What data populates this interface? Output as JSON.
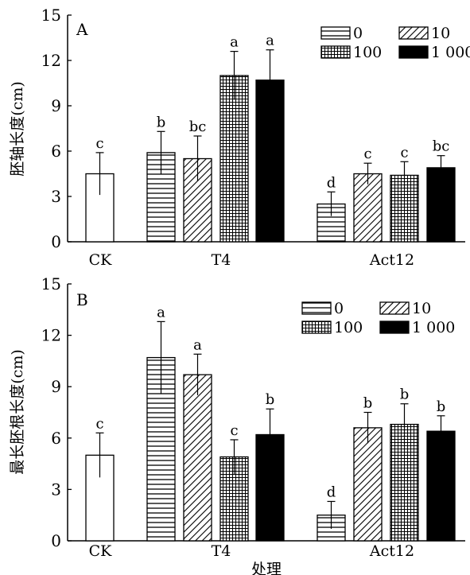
{
  "legend_entries": [
    {
      "label": "0",
      "pattern": "hlines"
    },
    {
      "label": "10",
      "pattern": "diag"
    },
    {
      "label": "100",
      "pattern": "grid"
    },
    {
      "label": "1 000",
      "pattern": "solid"
    }
  ],
  "chart_data": [
    {
      "type": "bar",
      "panel": "A",
      "ylabel": "胚轴长度(cm)",
      "xlabel": "",
      "ylim": [
        0,
        15
      ],
      "yticks": [
        "0",
        "3",
        "6",
        "9",
        "12",
        "15"
      ],
      "groups": [
        "CK",
        "T4",
        "Act12"
      ],
      "bars": [
        {
          "group": "CK",
          "level": "",
          "value": 4.5,
          "error": 1.4,
          "letter": "c"
        },
        {
          "group": "T4",
          "level": "0",
          "value": 5.9,
          "error": 1.4,
          "letter": "b"
        },
        {
          "group": "T4",
          "level": "10",
          "value": 5.5,
          "error": 1.5,
          "letter": "bc"
        },
        {
          "group": "T4",
          "level": "100",
          "value": 11.0,
          "error": 1.6,
          "letter": "a"
        },
        {
          "group": "T4",
          "level": "1 000",
          "value": 10.7,
          "error": 2.0,
          "letter": "a"
        },
        {
          "group": "Act12",
          "level": "0",
          "value": 2.5,
          "error": 0.8,
          "letter": "d"
        },
        {
          "group": "Act12",
          "level": "10",
          "value": 4.5,
          "error": 0.7,
          "letter": "c"
        },
        {
          "group": "Act12",
          "level": "100",
          "value": 4.4,
          "error": 0.9,
          "letter": "c"
        },
        {
          "group": "Act12",
          "level": "1 000",
          "value": 4.9,
          "error": 0.8,
          "letter": "bc"
        }
      ],
      "legend_position": "top-right",
      "grid": false
    },
    {
      "type": "bar",
      "panel": "B",
      "ylabel": "最长胚根长度(cm)",
      "xlabel": "处理",
      "ylim": [
        0,
        15
      ],
      "yticks": [
        "0",
        "3",
        "6",
        "9",
        "12",
        "15"
      ],
      "groups": [
        "CK",
        "T4",
        "Act12"
      ],
      "bars": [
        {
          "group": "CK",
          "level": "",
          "value": 5.0,
          "error": 1.3,
          "letter": "c"
        },
        {
          "group": "T4",
          "level": "0",
          "value": 10.7,
          "error": 2.1,
          "letter": "a"
        },
        {
          "group": "T4",
          "level": "10",
          "value": 9.7,
          "error": 1.2,
          "letter": "a"
        },
        {
          "group": "T4",
          "level": "100",
          "value": 4.9,
          "error": 1.0,
          "letter": "c"
        },
        {
          "group": "T4",
          "level": "1 000",
          "value": 6.2,
          "error": 1.5,
          "letter": "b"
        },
        {
          "group": "Act12",
          "level": "0",
          "value": 1.5,
          "error": 0.8,
          "letter": "d"
        },
        {
          "group": "Act12",
          "level": "10",
          "value": 6.6,
          "error": 0.9,
          "letter": "b"
        },
        {
          "group": "Act12",
          "level": "100",
          "value": 6.8,
          "error": 1.2,
          "letter": "b"
        },
        {
          "group": "Act12",
          "level": "1 000",
          "value": 6.4,
          "error": 0.9,
          "letter": "b"
        }
      ],
      "legend_position": "top-right",
      "grid": false
    }
  ]
}
